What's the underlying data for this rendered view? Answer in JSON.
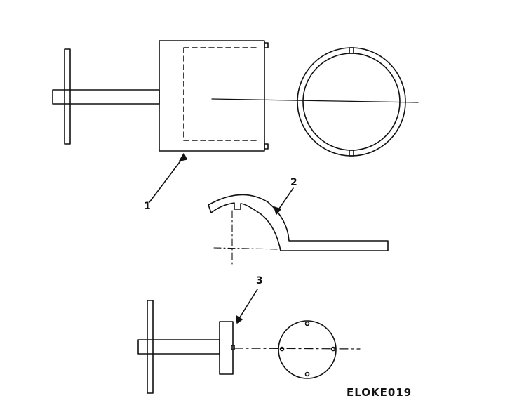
{
  "callouts": {
    "item1": "1",
    "item2": "2",
    "item3": "3"
  },
  "figure_code": "ELOKE019",
  "colors": {
    "line": "#111111",
    "background": "#ffffff"
  }
}
